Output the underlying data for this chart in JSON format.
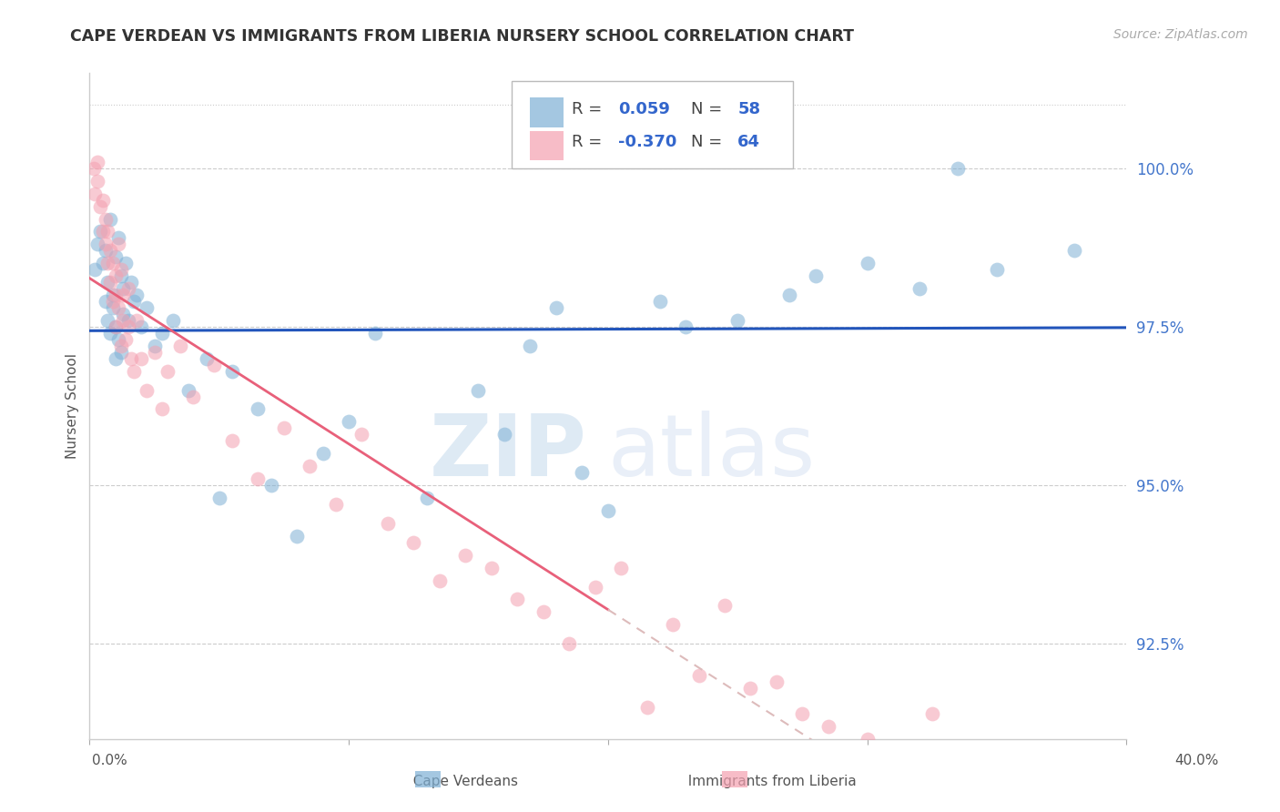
{
  "title": "CAPE VERDEAN VS IMMIGRANTS FROM LIBERIA NURSERY SCHOOL CORRELATION CHART",
  "source": "Source: ZipAtlas.com",
  "ylabel": "Nursery School",
  "xlim": [
    0.0,
    40.0
  ],
  "ylim": [
    91.0,
    101.5
  ],
  "yticks": [
    92.5,
    95.0,
    97.5,
    100.0
  ],
  "ytick_labels": [
    "92.5%",
    "95.0%",
    "97.5%",
    "100.0%"
  ],
  "blue_color": "#7EB0D5",
  "pink_color": "#F4A0B0",
  "blue_line_color": "#2255BB",
  "pink_line_color": "#E8607A",
  "pink_dash_color": "#DDBBBB",
  "blue_R": 0.059,
  "blue_N": 58,
  "pink_R": -0.37,
  "pink_N": 64,
  "legend_label1": "Cape Verdeans",
  "legend_label2": "Immigrants from Liberia",
  "background_color": "#FFFFFF",
  "blue_scatter_x": [
    0.2,
    0.3,
    0.4,
    0.5,
    0.6,
    0.6,
    0.7,
    0.7,
    0.8,
    0.8,
    0.9,
    0.9,
    1.0,
    1.0,
    1.0,
    1.1,
    1.1,
    1.2,
    1.2,
    1.3,
    1.3,
    1.4,
    1.5,
    1.6,
    1.7,
    1.8,
    2.0,
    2.2,
    2.5,
    2.8,
    3.2,
    3.8,
    4.5,
    5.0,
    5.5,
    6.5,
    7.0,
    8.0,
    9.0,
    10.0,
    11.0,
    13.0,
    15.0,
    16.0,
    17.0,
    18.0,
    19.0,
    20.0,
    22.0,
    23.0,
    25.0,
    27.0,
    28.0,
    30.0,
    32.0,
    33.5,
    35.0,
    38.0
  ],
  "blue_scatter_y": [
    98.4,
    98.8,
    99.0,
    98.5,
    97.9,
    98.7,
    98.2,
    97.6,
    99.2,
    97.4,
    98.0,
    97.8,
    98.6,
    97.5,
    97.0,
    98.9,
    97.3,
    98.3,
    97.1,
    98.1,
    97.7,
    98.5,
    97.6,
    98.2,
    97.9,
    98.0,
    97.5,
    97.8,
    97.2,
    97.4,
    97.6,
    96.5,
    97.0,
    94.8,
    96.8,
    96.2,
    95.0,
    94.2,
    95.5,
    96.0,
    97.4,
    94.8,
    96.5,
    95.8,
    97.2,
    97.8,
    95.2,
    94.6,
    97.9,
    97.5,
    97.6,
    98.0,
    98.3,
    98.5,
    98.1,
    100.0,
    98.4,
    98.7
  ],
  "pink_scatter_x": [
    0.15,
    0.2,
    0.3,
    0.3,
    0.4,
    0.5,
    0.5,
    0.6,
    0.6,
    0.7,
    0.7,
    0.8,
    0.8,
    0.9,
    0.9,
    1.0,
    1.0,
    1.0,
    1.1,
    1.1,
    1.2,
    1.2,
    1.3,
    1.3,
    1.4,
    1.5,
    1.5,
    1.6,
    1.7,
    1.8,
    2.0,
    2.2,
    2.5,
    2.8,
    3.0,
    3.5,
    4.0,
    4.8,
    5.5,
    6.5,
    7.5,
    8.5,
    9.5,
    10.5,
    11.5,
    12.5,
    13.5,
    14.5,
    15.5,
    16.5,
    17.5,
    18.5,
    19.5,
    20.5,
    21.5,
    22.5,
    23.5,
    24.5,
    25.5,
    26.5,
    27.5,
    28.5,
    30.0,
    32.5
  ],
  "pink_scatter_y": [
    100.0,
    99.6,
    99.8,
    100.1,
    99.4,
    99.0,
    99.5,
    98.8,
    99.2,
    98.5,
    99.0,
    98.2,
    98.7,
    97.9,
    98.5,
    98.0,
    97.5,
    98.3,
    97.8,
    98.8,
    98.4,
    97.2,
    97.6,
    98.0,
    97.3,
    97.5,
    98.1,
    97.0,
    96.8,
    97.6,
    97.0,
    96.5,
    97.1,
    96.2,
    96.8,
    97.2,
    96.4,
    96.9,
    95.7,
    95.1,
    95.9,
    95.3,
    94.7,
    95.8,
    94.4,
    94.1,
    93.5,
    93.9,
    93.7,
    93.2,
    93.0,
    92.5,
    93.4,
    93.7,
    91.5,
    92.8,
    92.0,
    93.1,
    91.8,
    91.9,
    91.4,
    91.2,
    91.0,
    91.4
  ]
}
